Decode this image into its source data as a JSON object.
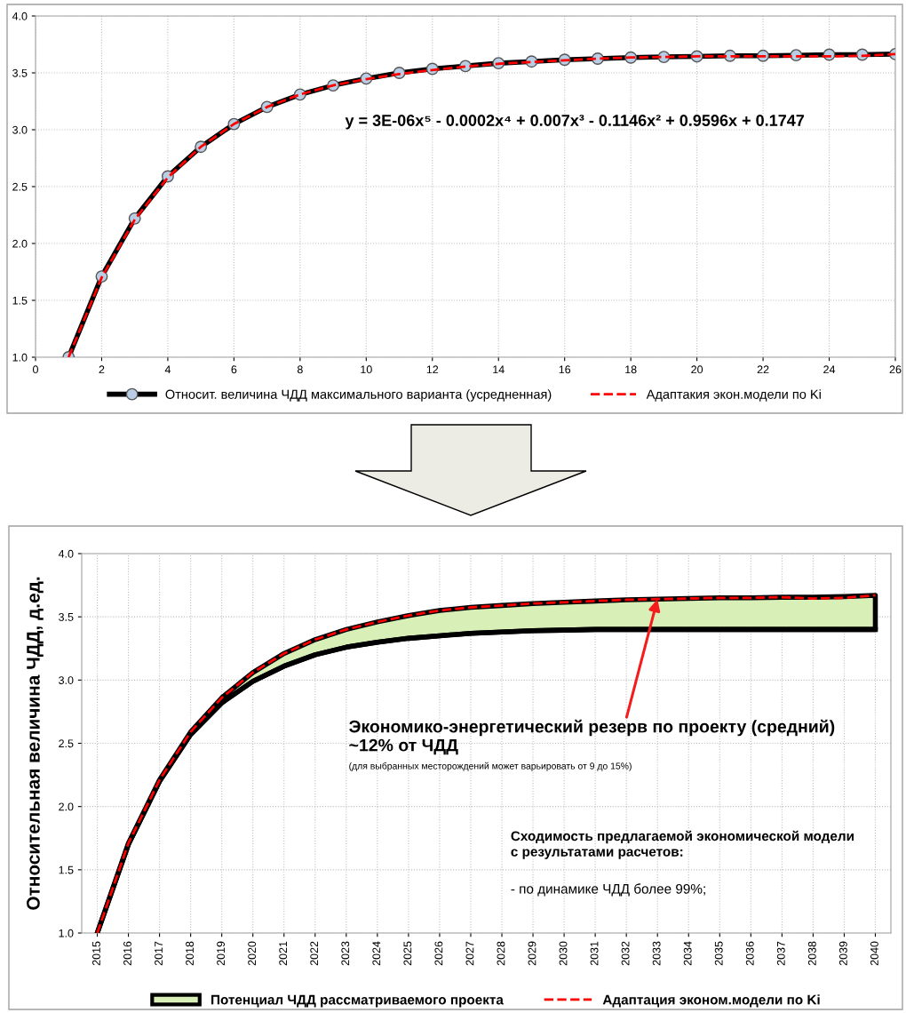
{
  "chart_data": [
    {
      "type": "line",
      "x": [
        1,
        2,
        3,
        4,
        5,
        6,
        7,
        8,
        9,
        10,
        11,
        12,
        13,
        14,
        15,
        16,
        17,
        18,
        19,
        20,
        21,
        22,
        23,
        24,
        25,
        26
      ],
      "series": [
        {
          "name": "Относит. величина ЧДД максимального варианта (усредненная)",
          "color": "#000000",
          "marker": "circle",
          "line_style": "solid",
          "values": [
            1.0,
            1.71,
            2.22,
            2.59,
            2.85,
            3.05,
            3.2,
            3.31,
            3.39,
            3.45,
            3.5,
            3.535,
            3.56,
            3.585,
            3.6,
            3.615,
            3.625,
            3.635,
            3.64,
            3.645,
            3.65,
            3.65,
            3.655,
            3.66,
            3.66,
            3.665
          ]
        },
        {
          "name": "Адаптакия экон.модели по Ki",
          "color": "#ff0000",
          "marker": "none",
          "line_style": "dashed",
          "values": [
            1.0,
            1.7,
            2.21,
            2.58,
            2.85,
            3.05,
            3.2,
            3.31,
            3.39,
            3.445,
            3.49,
            3.525,
            3.555,
            3.58,
            3.595,
            3.61,
            3.625,
            3.635,
            3.64,
            3.645,
            3.645,
            3.645,
            3.645,
            3.645,
            3.65,
            3.665
          ]
        }
      ],
      "xlim": [
        0,
        26
      ],
      "xticks": [
        0,
        2,
        4,
        6,
        8,
        10,
        12,
        14,
        16,
        18,
        20,
        22,
        24,
        26
      ],
      "ylim": [
        1,
        4
      ],
      "yticks": [
        {
          "value": 1,
          "label": "1.0"
        },
        {
          "value": 1.5,
          "label": "1.5"
        },
        {
          "value": 2,
          "label": "2.0"
        },
        {
          "value": 2.5,
          "label": "2.5"
        },
        {
          "value": 3,
          "label": "3.0"
        },
        {
          "value": 3.5,
          "label": "3.5"
        },
        {
          "value": 4,
          "label": "4.0"
        }
      ],
      "grid": true,
      "legend": "bottom",
      "annotations": [
        "y = 3E-06x⁵ - 0.0002x⁴ + 0.007x³ - 0.1146x² + 0.9596x + 0.1747"
      ]
    },
    {
      "type": "line",
      "categories": [
        "2015",
        "2016",
        "2017",
        "2018",
        "2019",
        "2020",
        "2021",
        "2022",
        "2023",
        "2024",
        "2025",
        "2026",
        "2027",
        "2028",
        "2029",
        "2030",
        "2031",
        "2032",
        "2033",
        "2034",
        "2035",
        "2036",
        "2037",
        "2038",
        "2039",
        "2040"
      ],
      "ylabel": "Относительная величина ЧДД, д.ед.",
      "series": [
        {
          "name": "Потенциал ЧДД рассматриваемого проекта",
          "type": "line",
          "color": "#000000",
          "values": [
            1.0,
            1.7,
            2.2,
            2.57,
            2.82,
            2.99,
            3.11,
            3.2,
            3.26,
            3.3,
            3.33,
            3.35,
            3.37,
            3.38,
            3.39,
            3.395,
            3.4,
            3.4,
            3.4,
            3.4,
            3.4,
            3.4,
            3.4,
            3.4,
            3.4,
            3.4
          ],
          "lower": [
            1.0,
            1.7,
            2.2,
            2.57,
            2.82,
            2.99,
            3.11,
            3.2,
            3.26,
            3.3,
            3.33,
            3.35,
            3.37,
            3.38,
            3.39,
            3.395,
            3.4,
            3.4,
            3.4,
            3.4,
            3.4,
            3.4,
            3.4,
            3.4,
            3.4,
            3.4
          ],
          "upper": [
            1.0,
            1.71,
            2.21,
            2.59,
            2.86,
            3.06,
            3.21,
            3.32,
            3.4,
            3.46,
            3.51,
            3.55,
            3.575,
            3.59,
            3.605,
            3.615,
            3.625,
            3.635,
            3.64,
            3.645,
            3.65,
            3.65,
            3.655,
            3.655,
            3.66,
            3.67
          ]
        },
        {
          "name": "Адаптация эконом.модели по Ki",
          "type": "line",
          "color": "#ff0000",
          "line_style": "dashed",
          "values": [
            1.0,
            1.71,
            2.21,
            2.59,
            2.86,
            3.06,
            3.21,
            3.32,
            3.4,
            3.46,
            3.51,
            3.55,
            3.575,
            3.59,
            3.605,
            3.615,
            3.625,
            3.635,
            3.64,
            3.645,
            3.65,
            3.65,
            3.655,
            3.645,
            3.65,
            3.67
          ]
        }
      ],
      "ylim": [
        1,
        4
      ],
      "yticks": [
        {
          "value": 1,
          "label": "1.0"
        },
        {
          "value": 1.5,
          "label": "1.5"
        },
        {
          "value": 2,
          "label": "2.0"
        },
        {
          "value": 2.5,
          "label": "2.5"
        },
        {
          "value": 3,
          "label": "3.0"
        },
        {
          "value": 3.5,
          "label": "3.5"
        },
        {
          "value": 4,
          "label": "4.0"
        }
      ],
      "grid": true,
      "legend": "bottom",
      "annotations": [
        {
          "text": "Экономико-энергетический резерв по проекту (средний)\n~12% от ЧДД",
          "x": "2033",
          "y": 3.64
        },
        "(для выбранных месторождений может варьировать от 9 до 15%)",
        "Сходимость предлагаемой экономической модели\nс результатами расчетов:",
        "- по динамике ЧДД более 99%;"
      ]
    }
  ]
}
